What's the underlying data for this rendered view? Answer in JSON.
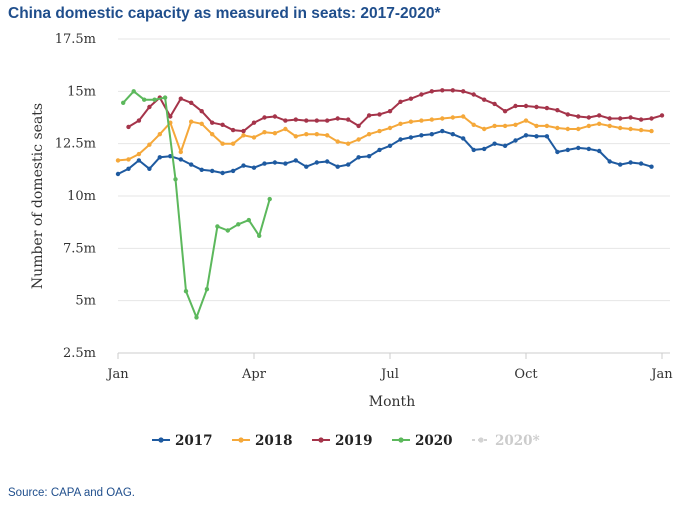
{
  "page": {
    "title": "China domestic capacity as measured in seats: 2017-2020*",
    "source": "Source: CAPA and OAG."
  },
  "chart_data": {
    "type": "line",
    "title": "China domestic capacity as measured in seats: 2017-2020*",
    "xlabel": "Month",
    "ylabel": "Number of domestic seats",
    "x_ticks": [
      {
        "label": "Jan",
        "week": 0
      },
      {
        "label": "Apr",
        "week": 13
      },
      {
        "label": "Jul",
        "week": 26
      },
      {
        "label": "Oct",
        "week": 39
      },
      {
        "label": "Jan",
        "week": 52
      }
    ],
    "y_ticks": [
      {
        "label": "2.5m",
        "value": 2.5
      },
      {
        "label": "5m",
        "value": 5
      },
      {
        "label": "7.5m",
        "value": 7.5
      },
      {
        "label": "10m",
        "value": 10
      },
      {
        "label": "12.5m",
        "value": 12.5
      },
      {
        "label": "15m",
        "value": 15
      },
      {
        "label": "17.5m",
        "value": 17.5
      }
    ],
    "xlim": [
      0,
      53
    ],
    "ylim": [
      2.5,
      17.5
    ],
    "units": "millions of seats",
    "legend_position": "bottom",
    "series": [
      {
        "name": "2017",
        "color": "#1e5aa0",
        "start_week": 0,
        "values": [
          11.05,
          11.3,
          11.7,
          11.3,
          11.85,
          11.9,
          11.75,
          11.5,
          11.25,
          11.2,
          11.1,
          11.2,
          11.45,
          11.35,
          11.55,
          11.6,
          11.55,
          11.7,
          11.4,
          11.6,
          11.65,
          11.4,
          11.5,
          11.85,
          11.9,
          12.2,
          12.4,
          12.7,
          12.8,
          12.9,
          12.95,
          13.1,
          12.95,
          12.75,
          12.2,
          12.25,
          12.5,
          12.4,
          12.65,
          12.9,
          12.85,
          12.85,
          12.1,
          12.2,
          12.3,
          12.25,
          12.15,
          11.65,
          11.5,
          11.6,
          11.55,
          11.4
        ]
      },
      {
        "name": "2018",
        "color": "#f5a83a",
        "start_week": 0,
        "values": [
          11.7,
          11.75,
          12.0,
          12.45,
          12.95,
          13.5,
          12.1,
          13.55,
          13.45,
          12.95,
          12.5,
          12.5,
          12.9,
          12.8,
          13.05,
          13.0,
          13.2,
          12.85,
          12.95,
          12.95,
          12.9,
          12.6,
          12.5,
          12.7,
          12.95,
          13.1,
          13.25,
          13.45,
          13.55,
          13.6,
          13.65,
          13.7,
          13.75,
          13.8,
          13.4,
          13.2,
          13.35,
          13.35,
          13.4,
          13.6,
          13.35,
          13.35,
          13.25,
          13.2,
          13.2,
          13.35,
          13.45,
          13.35,
          13.25,
          13.2,
          13.15,
          13.1
        ]
      },
      {
        "name": "2019",
        "color": "#a5344a",
        "start_week": 1,
        "values": [
          13.3,
          13.6,
          14.25,
          14.7,
          13.8,
          14.65,
          14.45,
          14.05,
          13.5,
          13.4,
          13.15,
          13.1,
          13.5,
          13.75,
          13.8,
          13.6,
          13.65,
          13.6,
          13.6,
          13.6,
          13.7,
          13.65,
          13.35,
          13.85,
          13.9,
          14.05,
          14.5,
          14.65,
          14.85,
          15.0,
          15.05,
          15.05,
          15.0,
          14.85,
          14.6,
          14.4,
          14.05,
          14.3,
          14.3,
          14.25,
          14.2,
          14.1,
          13.9,
          13.8,
          13.75,
          13.85,
          13.7,
          13.7,
          13.75,
          13.65,
          13.7,
          13.85
        ]
      },
      {
        "name": "2020",
        "color": "#5cb85c",
        "start_week": 0.5,
        "values": [
          14.45,
          15.0,
          14.6,
          14.6,
          14.7,
          10.8,
          5.45,
          4.2,
          5.55,
          8.55,
          8.35,
          8.65,
          8.85,
          8.1,
          9.85
        ]
      },
      {
        "name": "2020*",
        "color": "#d3d3d3",
        "start_week": 0,
        "values": []
      }
    ]
  }
}
